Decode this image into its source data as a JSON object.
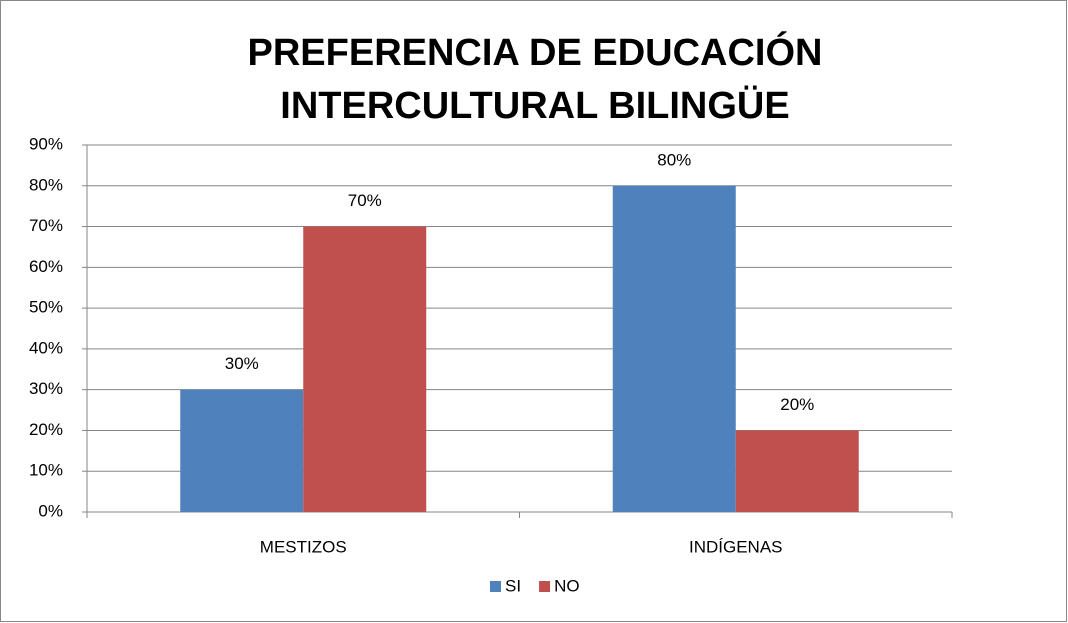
{
  "chart_data": {
    "type": "bar",
    "title": [
      "PREFERENCIA DE EDUCACIÓN",
      "INTERCULTURAL BILINGÜE"
    ],
    "categories": [
      "MESTIZOS",
      "INDÍGENAS"
    ],
    "series": [
      {
        "name": "SI",
        "color": "#4f81bd",
        "values": [
          30,
          80
        ],
        "value_labels": [
          "30%",
          "80%"
        ]
      },
      {
        "name": "NO",
        "color": "#c0504d",
        "values": [
          70,
          20
        ],
        "value_labels": [
          "70%",
          "20%"
        ]
      }
    ],
    "ylim": [
      0,
      90
    ],
    "yticks": [
      {
        "value": 0,
        "label": "0%"
      },
      {
        "value": 10,
        "label": "10%"
      },
      {
        "value": 20,
        "label": "20%"
      },
      {
        "value": 30,
        "label": "30%"
      },
      {
        "value": 40,
        "label": "40%"
      },
      {
        "value": 50,
        "label": "50%"
      },
      {
        "value": 60,
        "label": "60%"
      },
      {
        "value": 70,
        "label": "70%"
      },
      {
        "value": 80,
        "label": "80%"
      },
      {
        "value": 90,
        "label": "90%"
      }
    ],
    "grid": true,
    "legend": "bottom"
  }
}
